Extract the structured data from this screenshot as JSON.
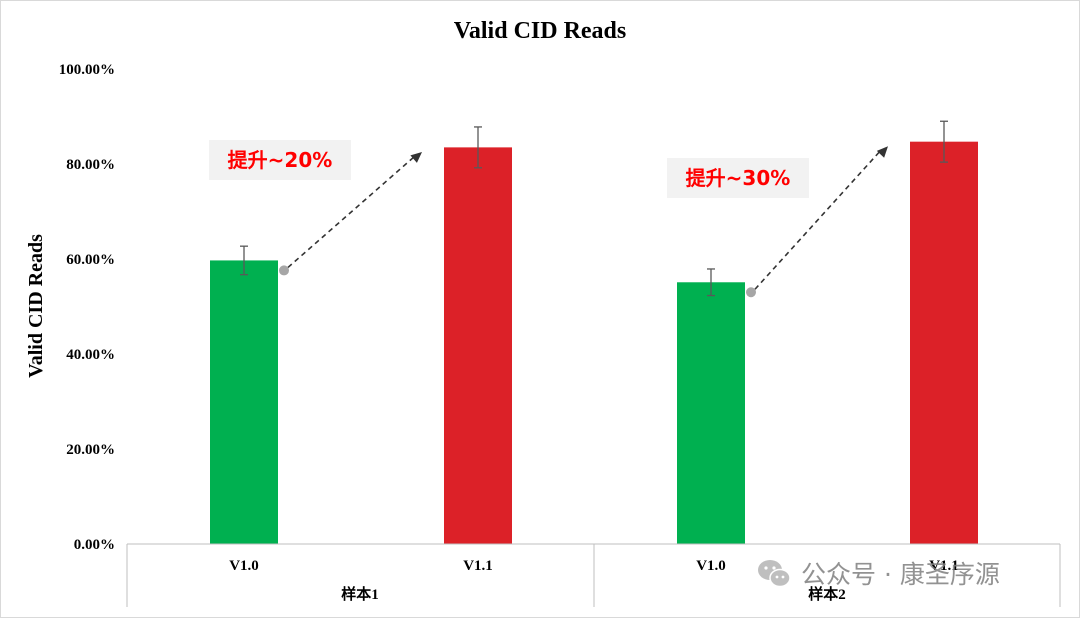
{
  "chart_data": {
    "type": "bar",
    "title": "Valid CID Reads",
    "ylabel": "Valid CID Reads",
    "xlabel": "",
    "ylim": [
      0,
      100
    ],
    "y_ticks": [
      "0.00%",
      "20.00%",
      "40.00%",
      "60.00%",
      "80.00%",
      "100.00%"
    ],
    "y_tick_values": [
      0,
      20,
      40,
      60,
      80,
      100
    ],
    "groups": [
      {
        "label": "样本1",
        "bars": [
          {
            "label": "V1.0",
            "value": 59.7,
            "err": 3.0,
            "color": "#00b050"
          },
          {
            "label": "V1.1",
            "value": 83.5,
            "err": 4.3,
            "color": "#dc2128"
          }
        ],
        "annotation": "提升~20%"
      },
      {
        "label": "样本2",
        "bars": [
          {
            "label": "V1.0",
            "value": 55.1,
            "err": 2.8,
            "color": "#00b050"
          },
          {
            "label": "V1.1",
            "value": 84.7,
            "err": 4.3,
            "color": "#dc2128"
          }
        ],
        "annotation": "提升~30%"
      }
    ],
    "grid": false,
    "legend": "none"
  },
  "watermark": {
    "text": "公众号 · 康圣序源",
    "icon": "wechat-icon"
  },
  "colors": {
    "annotation_text": "#ff0000",
    "annotation_bg": "#f2f2f2",
    "arrow": "#333333",
    "arrow_dot": "#a6a6a6"
  }
}
